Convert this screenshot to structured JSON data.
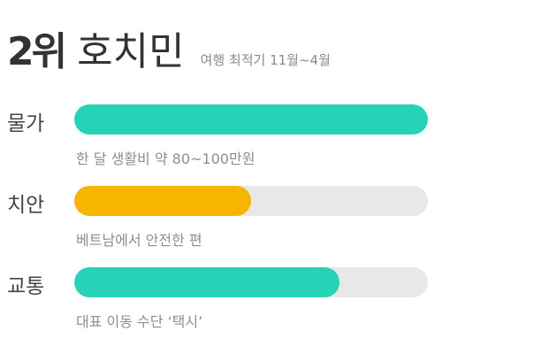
{
  "header": {
    "rank": "2위",
    "city": "호치민",
    "subtitle": "여행 최적기 11월~4월"
  },
  "metrics": [
    {
      "label": "물가",
      "percent": 100,
      "color": "#26d2b8",
      "description": "한 달 생활비 약 80~100만원"
    },
    {
      "label": "치안",
      "percent": 50,
      "color": "#f7b500",
      "description": "베트남에서 안전한 편"
    },
    {
      "label": "교통",
      "percent": 75,
      "color": "#26d2b8",
      "description": "대표 이동 수단 ‘택시’"
    }
  ],
  "track_color": "#e8e8e8"
}
